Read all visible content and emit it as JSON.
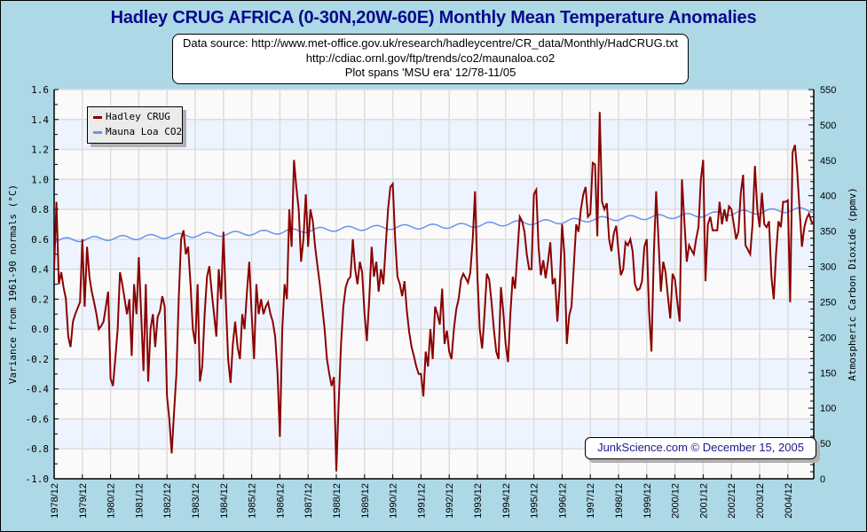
{
  "title": "Hadley CRUG AFRICA (0-30N,20W-60E) Monthly Mean Temperature Anomalies",
  "info": {
    "line1": "Data source: http://www.met-office.gov.uk/research/hadleycentre/CR_data/Monthly/HadCRUG.txt",
    "line2": "http://cdiac.ornl.gov/ftp/trends/co2/maunaloa.co2",
    "line3": "Plot spans 'MSU era' 12/78-11/05"
  },
  "credit": "JunkScience.com © December 15, 2005",
  "colors": {
    "background": "#add8e6",
    "temp": "#8b0000",
    "co2": "#6495ed",
    "band": "#eef4ff",
    "plot": "#fafafa",
    "grid": "#dcdcdc"
  },
  "chart_data": {
    "type": "line",
    "title": "Hadley CRUG AFRICA (0-30N,20W-60E) Monthly Mean Temperature Anomalies",
    "ylabel": "Variance from 1961-90 normals (°C)",
    "y2label": "Atmospheric Carbon Dioxide (ppmv)",
    "ylim": [
      -1.0,
      1.6
    ],
    "y2lim": [
      0,
      550
    ],
    "yticks": [
      "1.6",
      "1.4",
      "1.2",
      "1.0",
      "0.8",
      "0.6",
      "0.4",
      "0.2",
      "0.0",
      "-0.2",
      "-0.4",
      "-0.6",
      "-0.8",
      "-1.0"
    ],
    "y2ticks": [
      "550",
      "500",
      "450",
      "400",
      "350",
      "300",
      "250",
      "200",
      "150",
      "100",
      "50",
      "0"
    ],
    "xticks": [
      "1978/12",
      "1979/12",
      "1980/12",
      "1981/12",
      "1982/12",
      "1983/12",
      "1984/12",
      "1985/12",
      "1986/12",
      "1987/12",
      "1988/12",
      "1989/12",
      "1990/12",
      "1991/12",
      "1992/12",
      "1993/12",
      "1994/12",
      "1995/12",
      "1996/12",
      "1997/12",
      "1998/12",
      "1999/12",
      "2000/12",
      "2001/12",
      "2002/12",
      "2003/12",
      "2004/12"
    ],
    "x_start": "1978/12",
    "x_end": "2005/11",
    "grid": true,
    "legend_position": "top-left",
    "series": [
      {
        "name": "Hadley CRUG",
        "axis": "left",
        "frequency": "monthly",
        "values": [
          0.4,
          0.85,
          0.3,
          0.38,
          0.28,
          0.2,
          -0.05,
          -0.12,
          0.05,
          0.1,
          0.14,
          0.18,
          0.6,
          0.15,
          0.55,
          0.35,
          0.25,
          0.18,
          0.1,
          0.0,
          0.02,
          0.05,
          0.15,
          0.25,
          -0.33,
          -0.38,
          -0.2,
          0.0,
          0.38,
          0.3,
          0.2,
          0.1,
          0.2,
          -0.18,
          0.3,
          0.1,
          0.48,
          0.1,
          -0.28,
          0.3,
          -0.35,
          0.0,
          0.1,
          -0.12,
          0.08,
          0.12,
          0.22,
          0.15,
          -0.45,
          -0.6,
          -0.83,
          -0.55,
          -0.3,
          0.2,
          0.6,
          0.66,
          0.5,
          0.55,
          0.3,
          0.0,
          -0.1,
          0.3,
          -0.35,
          -0.25,
          0.1,
          0.35,
          0.42,
          0.25,
          0.1,
          -0.05,
          0.4,
          0.2,
          0.65,
          0.2,
          -0.2,
          -0.36,
          -0.1,
          0.05,
          -0.12,
          -0.2,
          0.1,
          0.0,
          0.25,
          0.45,
          0.1,
          -0.2,
          0.3,
          0.1,
          0.2,
          0.1,
          0.15,
          0.18,
          0.1,
          0.05,
          -0.05,
          -0.3,
          -0.72,
          0.0,
          0.3,
          0.2,
          0.8,
          0.55,
          1.13,
          0.95,
          0.8,
          0.45,
          0.6,
          0.9,
          0.55,
          0.8,
          0.72,
          0.55,
          0.42,
          0.3,
          0.15,
          0.0,
          -0.2,
          -0.3,
          -0.38,
          -0.32,
          -0.95,
          -0.5,
          -0.1,
          0.15,
          0.28,
          0.33,
          0.35,
          0.6,
          0.4,
          0.3,
          0.45,
          0.38,
          0.1,
          -0.08,
          0.2,
          0.55,
          0.35,
          0.45,
          0.25,
          0.4,
          0.3,
          0.55,
          0.8,
          0.95,
          0.97,
          0.6,
          0.35,
          0.3,
          0.22,
          0.32,
          0.12,
          -0.02,
          -0.12,
          -0.18,
          -0.25,
          -0.3,
          -0.3,
          -0.45,
          -0.15,
          -0.25,
          0.0,
          -0.2,
          0.15,
          0.1,
          0.03,
          0.27,
          -0.1,
          -0.01,
          -0.15,
          -0.2,
          0.0,
          0.13,
          0.2,
          0.33,
          0.37,
          0.34,
          0.31,
          0.38,
          0.6,
          0.92,
          0.35,
          0.0,
          -0.13,
          0.1,
          0.37,
          0.33,
          0.18,
          0.0,
          -0.15,
          -0.2,
          0.28,
          0.12,
          -0.1,
          -0.22,
          0.1,
          0.35,
          0.27,
          0.5,
          0.75,
          0.72,
          0.65,
          0.5,
          0.4,
          0.4,
          0.9,
          0.93,
          0.55,
          0.36,
          0.46,
          0.34,
          0.45,
          0.58,
          0.3,
          0.34,
          0.05,
          0.3,
          0.7,
          0.5,
          -0.1,
          0.09,
          0.15,
          0.42,
          0.7,
          0.65,
          0.8,
          0.9,
          0.95,
          0.75,
          0.77,
          1.11,
          1.1,
          0.62,
          1.45,
          0.85,
          0.8,
          0.84,
          0.6,
          0.52,
          0.64,
          0.69,
          0.52,
          0.36,
          0.4,
          0.58,
          0.56,
          0.6,
          0.52,
          0.3,
          0.26,
          0.27,
          0.32,
          0.55,
          0.6,
          0.12,
          -0.15,
          0.5,
          0.92,
          0.6,
          0.25,
          0.45,
          0.38,
          0.22,
          0.07,
          0.37,
          0.33,
          0.18,
          0.05,
          1.0,
          0.72,
          0.45,
          0.56,
          0.53,
          0.5,
          0.6,
          0.68,
          1.0,
          1.13,
          0.32,
          0.7,
          0.75,
          0.66,
          0.66,
          0.66,
          0.85,
          0.7,
          0.8,
          0.72,
          0.82,
          0.8,
          0.7,
          0.6,
          0.65,
          0.91,
          1.03,
          0.56,
          0.53,
          0.5,
          0.7,
          1.09,
          0.8,
          0.68,
          0.91,
          0.7,
          0.68,
          0.72,
          0.35,
          0.2,
          0.5,
          0.72,
          0.68,
          0.85,
          0.85,
          0.86,
          0.18,
          1.18,
          1.23,
          1.05,
          0.8,
          0.55,
          0.68,
          0.74,
          0.77,
          0.72,
          0.7
        ]
      },
      {
        "name": "Mauna Loa CO2",
        "axis": "right",
        "frequency": "annual-mean with seasonal cycle",
        "years": [
          1979,
          1980,
          1981,
          1982,
          1983,
          1984,
          1985,
          1986,
          1987,
          1988,
          1989,
          1990,
          1991,
          1992,
          1993,
          1994,
          1995,
          1996,
          1997,
          1998,
          1999,
          2000,
          2001,
          2002,
          2003,
          2004,
          2005
        ],
        "values": [
          336.8,
          338.7,
          340.1,
          341.4,
          343.0,
          344.6,
          346.0,
          347.4,
          349.2,
          351.6,
          353.1,
          354.4,
          355.6,
          356.4,
          357.1,
          358.8,
          360.8,
          362.6,
          363.7,
          366.7,
          368.4,
          369.6,
          371.1,
          373.2,
          375.8,
          377.5,
          379.8
        ],
        "seasonal_amplitude": 3.2
      }
    ]
  }
}
